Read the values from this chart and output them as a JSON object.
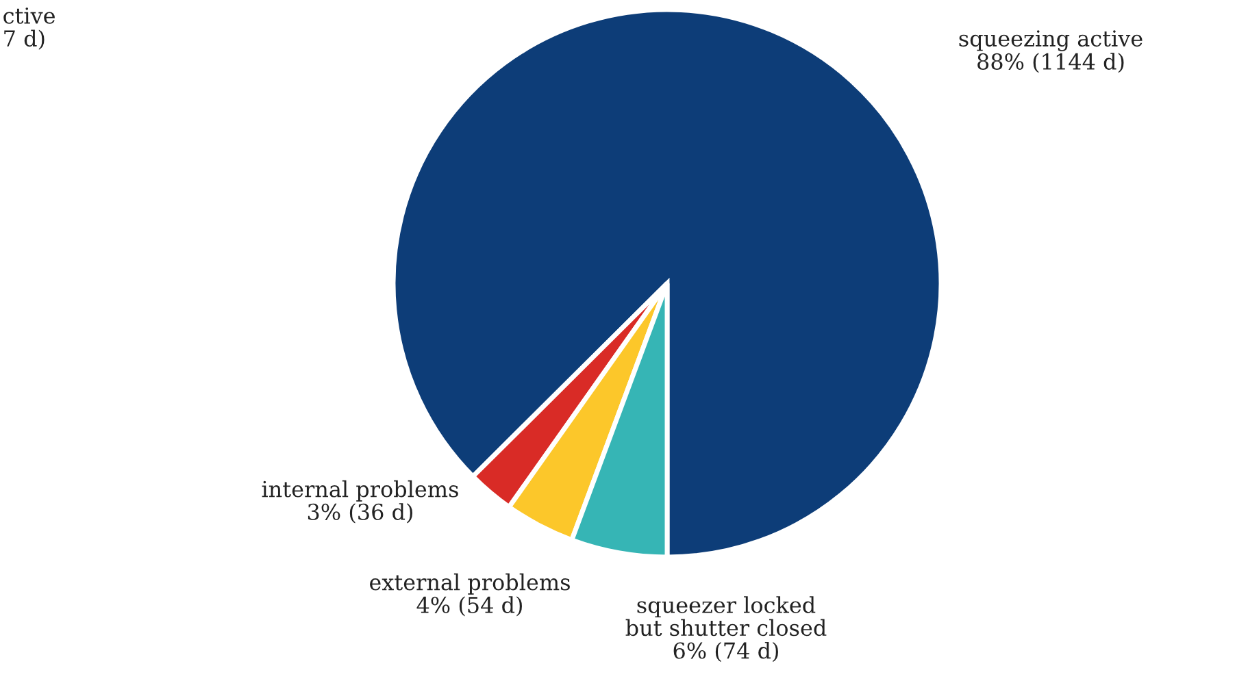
{
  "chart_data": {
    "type": "pie",
    "categories": [
      "squeezing active",
      "internal problems",
      "external problems",
      "squeezer locked\nbut shutter closed"
    ],
    "values": [
      1144,
      36,
      54,
      74
    ],
    "value_labels": [
      "88% (1144 d)",
      "3% (36 d)",
      "4% (54 d)",
      "6% (74 d)"
    ],
    "colors": [
      "#0d3d78",
      "#d92b26",
      "#fcc72a",
      "#36b5b5"
    ],
    "annotations": [
      "ctive\n7 d)"
    ]
  }
}
